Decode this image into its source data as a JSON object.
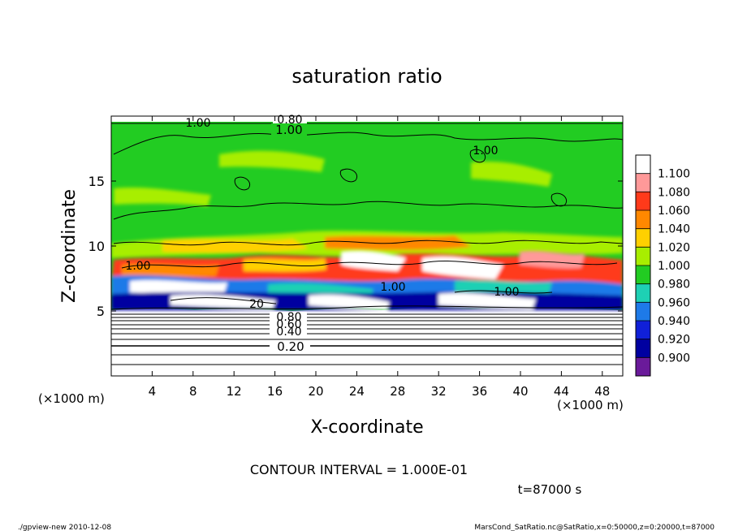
{
  "chart_data": {
    "type": "heatmap",
    "title": "saturation ratio",
    "xlabel": "X-coordinate",
    "ylabel": "Z-coordinate",
    "x_unit_left": "(×1000 m)",
    "x_unit_right": "(×1000 m)",
    "xlim": [
      0,
      50
    ],
    "ylim": [
      0,
      20
    ],
    "x_ticks": [
      4,
      8,
      12,
      16,
      20,
      24,
      28,
      32,
      36,
      40,
      44,
      48
    ],
    "y_ticks": [
      5,
      10,
      15
    ],
    "colorbar": {
      "levels": [
        "1.100",
        "1.080",
        "1.060",
        "1.040",
        "1.020",
        "1.000",
        "0.980",
        "0.960",
        "0.940",
        "0.920",
        "0.900"
      ],
      "colors": [
        "#ffffff",
        "#ff9999",
        "#ff3a1a",
        "#ff8800",
        "#ffd000",
        "#a8ee00",
        "#22cc22",
        "#1ed0b4",
        "#1e7ae8",
        "#1020d8",
        "#0000a0",
        "#6a1a9a"
      ]
    },
    "contour_labels": [
      "0.80",
      "1.00",
      "1.00",
      "1.00",
      "1.00",
      "1.00",
      "1.00",
      "0.80",
      "0.60",
      "0.40",
      "0.20",
      "20"
    ],
    "contour_interval_text": "CONTOUR INTERVAL = 1.000E-01",
    "time_text": "t=87000 s"
  },
  "footer": {
    "left": "./gpview-new 2010-12-08",
    "right": "MarsCond_SatRatio.nc@SatRatio,x=0:50000,z=0:20000,t=87000"
  }
}
